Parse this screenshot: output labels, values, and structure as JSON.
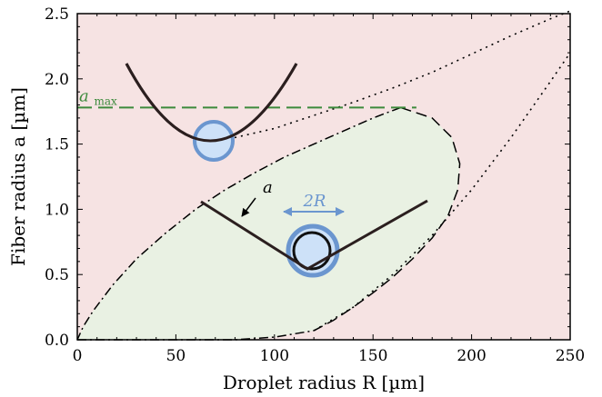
{
  "chart_data": {
    "type": "area",
    "xlabel": "Droplet radius R [µm]",
    "ylabel": "Fiber radius a [µm]",
    "xlim": [
      0,
      250
    ],
    "ylim": [
      0,
      2.5
    ],
    "xticks": [
      "0",
      "50",
      "100",
      "150",
      "200",
      "250"
    ],
    "yticks": [
      "0.0",
      "0.5",
      "1.0",
      "1.5",
      "2.0",
      "2.5"
    ],
    "grid": false,
    "background_color": "#f6e3e3",
    "region_color": "#e9f1e3",
    "amax_color": "#3c8a3c",
    "droplet_color": "#6b96cf",
    "droplet_fill": "#cde1f8",
    "series": [
      {
        "style": "dashed",
        "x": [
          164,
          180,
          190,
          194,
          193,
          188,
          180,
          170,
          160,
          150,
          140,
          130,
          120
        ],
        "y": [
          1.78,
          1.7,
          1.55,
          1.35,
          1.15,
          0.95,
          0.78,
          0.62,
          0.48,
          0.36,
          0.25,
          0.15,
          0.07
        ]
      },
      {
        "style": "dashdot",
        "x": [
          164,
          150,
          135,
          120,
          105,
          90,
          75,
          60,
          45,
          30,
          18,
          8,
          3,
          0
        ],
        "y": [
          1.78,
          1.7,
          1.6,
          1.5,
          1.4,
          1.28,
          1.15,
          1.0,
          0.82,
          0.62,
          0.42,
          0.22,
          0.1,
          0.0
        ],
        "lower_x": [
          0,
          20,
          40,
          60,
          80,
          100,
          120
        ],
        "lower_y": [
          0.0,
          0.0,
          0.0,
          0.0,
          0.0,
          0.02,
          0.07
        ]
      },
      {
        "style": "dotted",
        "x": [
          64,
          80,
          100,
          120,
          140,
          160,
          180,
          200,
          220,
          240,
          250
        ],
        "y": [
          1.5,
          1.55,
          1.62,
          1.72,
          1.82,
          1.93,
          2.05,
          2.19,
          2.33,
          2.46,
          2.52
        ]
      },
      {
        "style": "dotted",
        "x": [
          120,
          140,
          160,
          180,
          200,
          220,
          240,
          250
        ],
        "y": [
          0.07,
          0.25,
          0.5,
          0.8,
          1.15,
          1.55,
          1.98,
          2.2
        ]
      }
    ],
    "amax_line_y": 1.78,
    "amax_label_main": "a",
    "amax_label_sub": "max",
    "annotation_a": "a",
    "annotation_2R": "2R"
  }
}
